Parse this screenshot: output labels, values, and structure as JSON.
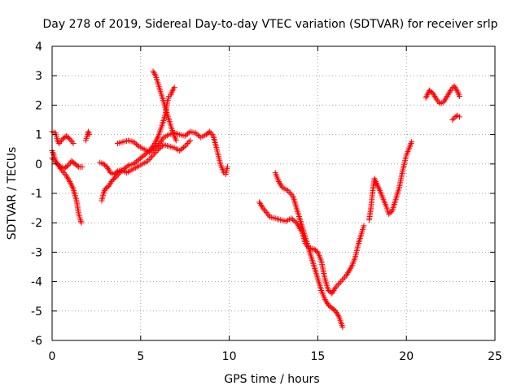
{
  "chart_data": {
    "type": "scatter",
    "title": "Day 278 of 2019, Sidereal Day-to-day VTEC variation (SDTVAR) for receiver srlp",
    "xlabel": "GPS time / hours",
    "ylabel": "SDTVAR / TECUs",
    "xlim": [
      0,
      25
    ],
    "ylim": [
      -6,
      4
    ],
    "xticks": [
      "0",
      "5",
      "10",
      "15",
      "20",
      "25"
    ],
    "yticks": [
      "-6",
      "-5",
      "-4",
      "-3",
      "-2",
      "-1",
      "0",
      "1",
      "2",
      "3",
      "4"
    ],
    "grid": true,
    "marker": "+",
    "color": "#ff0000",
    "series": [
      {
        "points": [
          [
            0,
            1.1
          ],
          [
            0.2,
            1.05
          ],
          [
            0.3,
            0.8
          ],
          [
            0.4,
            0.7
          ],
          [
            0.6,
            0.85
          ],
          [
            0.8,
            0.95
          ],
          [
            1.0,
            0.85
          ],
          [
            1.2,
            0.7
          ]
        ]
      },
      {
        "points": [
          [
            0,
            0.45
          ],
          [
            0.1,
            0.3
          ],
          [
            0.2,
            0.1
          ],
          [
            0.4,
            -0.1
          ],
          [
            0.6,
            -0.25
          ],
          [
            0.8,
            -0.4
          ],
          [
            1.0,
            -0.6
          ],
          [
            1.2,
            -0.85
          ],
          [
            1.4,
            -1.3
          ],
          [
            1.5,
            -1.7
          ],
          [
            1.6,
            -1.9
          ],
          [
            1.65,
            -2.0
          ]
        ]
      },
      {
        "points": [
          [
            0,
            0.2
          ],
          [
            0.15,
            0.1
          ],
          [
            0.3,
            0.0
          ],
          [
            0.5,
            -0.1
          ],
          [
            0.7,
            -0.15
          ],
          [
            0.9,
            -0.05
          ],
          [
            1.1,
            0.1
          ],
          [
            1.3,
            0.0
          ],
          [
            1.5,
            -0.1
          ],
          [
            1.7,
            -0.1
          ]
        ]
      },
      {
        "points": [
          [
            1.9,
            0.8
          ],
          [
            2.0,
            1.0
          ],
          [
            2.05,
            1.1
          ],
          [
            2.1,
            1.0
          ]
        ]
      },
      {
        "points": [
          [
            2.7,
            0.05
          ],
          [
            2.9,
            0.0
          ],
          [
            3.1,
            -0.1
          ],
          [
            3.3,
            -0.3
          ],
          [
            3.5,
            -0.35
          ],
          [
            3.7,
            -0.25
          ],
          [
            3.9,
            -0.2
          ],
          [
            4.2,
            -0.3
          ],
          [
            4.5,
            -0.2
          ],
          [
            4.8,
            -0.1
          ],
          [
            5.1,
            0.0
          ],
          [
            5.4,
            0.1
          ],
          [
            5.7,
            0.3
          ],
          [
            6.0,
            0.5
          ],
          [
            6.3,
            0.65
          ],
          [
            6.6,
            0.6
          ],
          [
            6.9,
            0.55
          ],
          [
            7.2,
            0.45
          ],
          [
            7.5,
            0.6
          ],
          [
            7.8,
            0.8
          ]
        ]
      },
      {
        "points": [
          [
            2.8,
            -1.25
          ],
          [
            2.9,
            -1.0
          ],
          [
            3.0,
            -0.85
          ],
          [
            3.2,
            -0.75
          ],
          [
            3.4,
            -0.55
          ],
          [
            3.6,
            -0.45
          ],
          [
            3.8,
            -0.3
          ],
          [
            4.0,
            -0.2
          ],
          [
            4.3,
            -0.05
          ],
          [
            4.6,
            0.0
          ],
          [
            4.9,
            0.15
          ],
          [
            5.2,
            0.3
          ],
          [
            5.5,
            0.45
          ],
          [
            5.8,
            0.7
          ],
          [
            6.0,
            0.95
          ],
          [
            6.2,
            1.3
          ],
          [
            6.4,
            1.7
          ],
          [
            6.5,
            2.1
          ],
          [
            6.6,
            2.3
          ],
          [
            6.7,
            2.35
          ],
          [
            6.8,
            2.5
          ],
          [
            6.9,
            2.6
          ]
        ]
      },
      {
        "points": [
          [
            5.7,
            3.15
          ],
          [
            5.85,
            3.0
          ],
          [
            6.0,
            2.7
          ],
          [
            6.15,
            2.4
          ],
          [
            6.3,
            2.1
          ],
          [
            6.45,
            1.8
          ],
          [
            6.6,
            1.5
          ],
          [
            6.75,
            1.2
          ],
          [
            6.9,
            0.95
          ],
          [
            7.0,
            0.8
          ]
        ]
      },
      {
        "points": [
          [
            3.7,
            0.7
          ],
          [
            4.0,
            0.75
          ],
          [
            4.3,
            0.8
          ],
          [
            4.6,
            0.75
          ],
          [
            4.9,
            0.6
          ],
          [
            5.2,
            0.5
          ],
          [
            5.5,
            0.4
          ],
          [
            5.8,
            0.55
          ],
          [
            6.0,
            0.65
          ],
          [
            6.3,
            0.9
          ],
          [
            6.6,
            1.0
          ],
          [
            6.9,
            1.05
          ],
          [
            7.2,
            1.0
          ],
          [
            7.5,
            0.95
          ],
          [
            7.8,
            1.1
          ],
          [
            8.1,
            1.05
          ],
          [
            8.4,
            0.9
          ],
          [
            8.7,
            1.0
          ],
          [
            8.9,
            1.1
          ],
          [
            9.1,
            0.95
          ],
          [
            9.3,
            0.5
          ],
          [
            9.5,
            0.0
          ],
          [
            9.7,
            -0.3
          ],
          [
            9.8,
            -0.35
          ],
          [
            9.9,
            -0.1
          ]
        ]
      },
      {
        "points": [
          [
            11.7,
            -1.3
          ],
          [
            11.9,
            -1.5
          ],
          [
            12.1,
            -1.65
          ],
          [
            12.3,
            -1.8
          ],
          [
            12.6,
            -1.85
          ],
          [
            12.9,
            -1.9
          ],
          [
            13.2,
            -1.95
          ],
          [
            13.5,
            -1.85
          ],
          [
            13.8,
            -2.0
          ],
          [
            14.1,
            -2.3
          ],
          [
            14.3,
            -2.7
          ],
          [
            14.5,
            -2.85
          ],
          [
            14.8,
            -2.9
          ],
          [
            15.0,
            -3.0
          ],
          [
            15.2,
            -3.3
          ],
          [
            15.4,
            -3.9
          ],
          [
            15.6,
            -4.3
          ],
          [
            15.8,
            -4.4
          ],
          [
            16.0,
            -4.2
          ],
          [
            16.3,
            -4.0
          ],
          [
            16.6,
            -3.8
          ],
          [
            16.9,
            -3.5
          ],
          [
            17.1,
            -3.2
          ],
          [
            17.3,
            -2.7
          ],
          [
            17.5,
            -2.3
          ],
          [
            17.6,
            -2.1
          ]
        ]
      },
      {
        "points": [
          [
            12.6,
            -0.3
          ],
          [
            12.8,
            -0.6
          ],
          [
            13.0,
            -0.8
          ],
          [
            13.3,
            -0.9
          ],
          [
            13.6,
            -1.1
          ],
          [
            13.8,
            -1.5
          ],
          [
            14.0,
            -1.9
          ],
          [
            14.2,
            -2.3
          ],
          [
            14.4,
            -2.7
          ],
          [
            14.6,
            -3.1
          ],
          [
            14.8,
            -3.5
          ],
          [
            15.0,
            -3.9
          ],
          [
            15.2,
            -4.3
          ],
          [
            15.4,
            -4.6
          ],
          [
            15.6,
            -4.8
          ],
          [
            15.8,
            -4.9
          ],
          [
            16.0,
            -5.0
          ],
          [
            16.2,
            -5.2
          ],
          [
            16.4,
            -5.55
          ]
        ]
      },
      {
        "points": [
          [
            17.9,
            -1.9
          ],
          [
            18.0,
            -1.5
          ],
          [
            18.1,
            -0.9
          ],
          [
            18.2,
            -0.5
          ],
          [
            18.35,
            -0.7
          ],
          [
            18.5,
            -0.9
          ],
          [
            18.7,
            -1.2
          ],
          [
            18.9,
            -1.5
          ],
          [
            19.0,
            -1.7
          ],
          [
            19.2,
            -1.6
          ],
          [
            19.4,
            -1.2
          ],
          [
            19.6,
            -0.8
          ],
          [
            19.8,
            -0.2
          ],
          [
            20.0,
            0.3
          ],
          [
            20.2,
            0.6
          ],
          [
            20.3,
            0.75
          ]
        ]
      },
      {
        "points": [
          [
            21.1,
            2.25
          ],
          [
            21.3,
            2.5
          ],
          [
            21.5,
            2.4
          ],
          [
            21.7,
            2.2
          ],
          [
            21.9,
            2.05
          ],
          [
            22.1,
            2.1
          ],
          [
            22.3,
            2.3
          ],
          [
            22.5,
            2.5
          ],
          [
            22.7,
            2.65
          ],
          [
            22.9,
            2.45
          ],
          [
            23.0,
            2.3
          ]
        ]
      },
      {
        "points": [
          [
            22.6,
            1.5
          ],
          [
            22.75,
            1.6
          ],
          [
            22.9,
            1.65
          ],
          [
            23.0,
            1.6
          ]
        ]
      }
    ]
  }
}
